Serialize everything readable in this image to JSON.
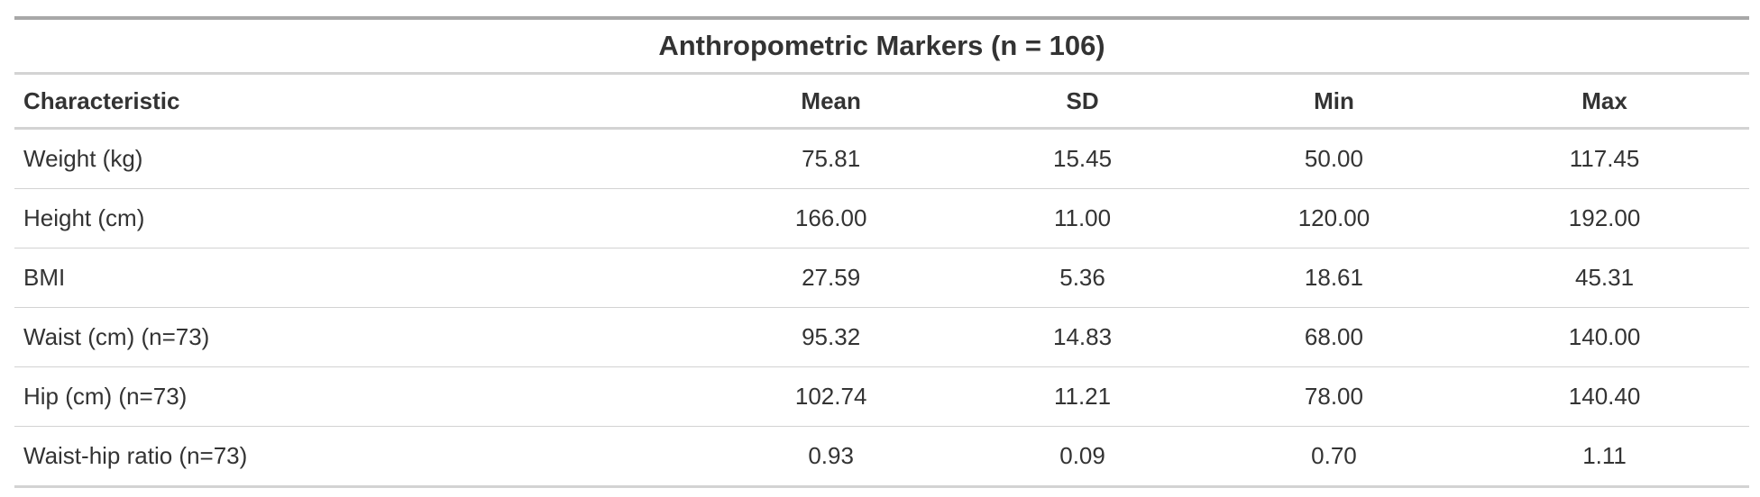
{
  "table": {
    "title": "Anthropometric Markers (n = 106)",
    "headers": {
      "characteristic": "Characteristic",
      "mean": "Mean",
      "sd": "SD",
      "min": "Min",
      "max": "Max"
    },
    "rows": [
      {
        "label": "Weight (kg)",
        "mean": "75.81",
        "sd": "15.45",
        "min": "50.00",
        "max": "117.45"
      },
      {
        "label": "Height (cm)",
        "mean": "166.00",
        "sd": "11.00",
        "min": "120.00",
        "max": "192.00"
      },
      {
        "label": "BMI",
        "mean": "27.59",
        "sd": "5.36",
        "min": "18.61",
        "max": "45.31"
      },
      {
        "label": "Waist (cm) (n=73)",
        "mean": "95.32",
        "sd": "14.83",
        "min": "68.00",
        "max": "140.00"
      },
      {
        "label": "Hip (cm) (n=73)",
        "mean": "102.74",
        "sd": "11.21",
        "min": "78.00",
        "max": "140.40"
      },
      {
        "label": "Waist-hip ratio (n=73)",
        "mean": "0.93",
        "sd": "0.09",
        "min": "0.70",
        "max": "1.11"
      }
    ]
  },
  "colors": {
    "text": "#333333",
    "top_rule": "#a8a8a8",
    "row_border": "#d3d3d3"
  }
}
